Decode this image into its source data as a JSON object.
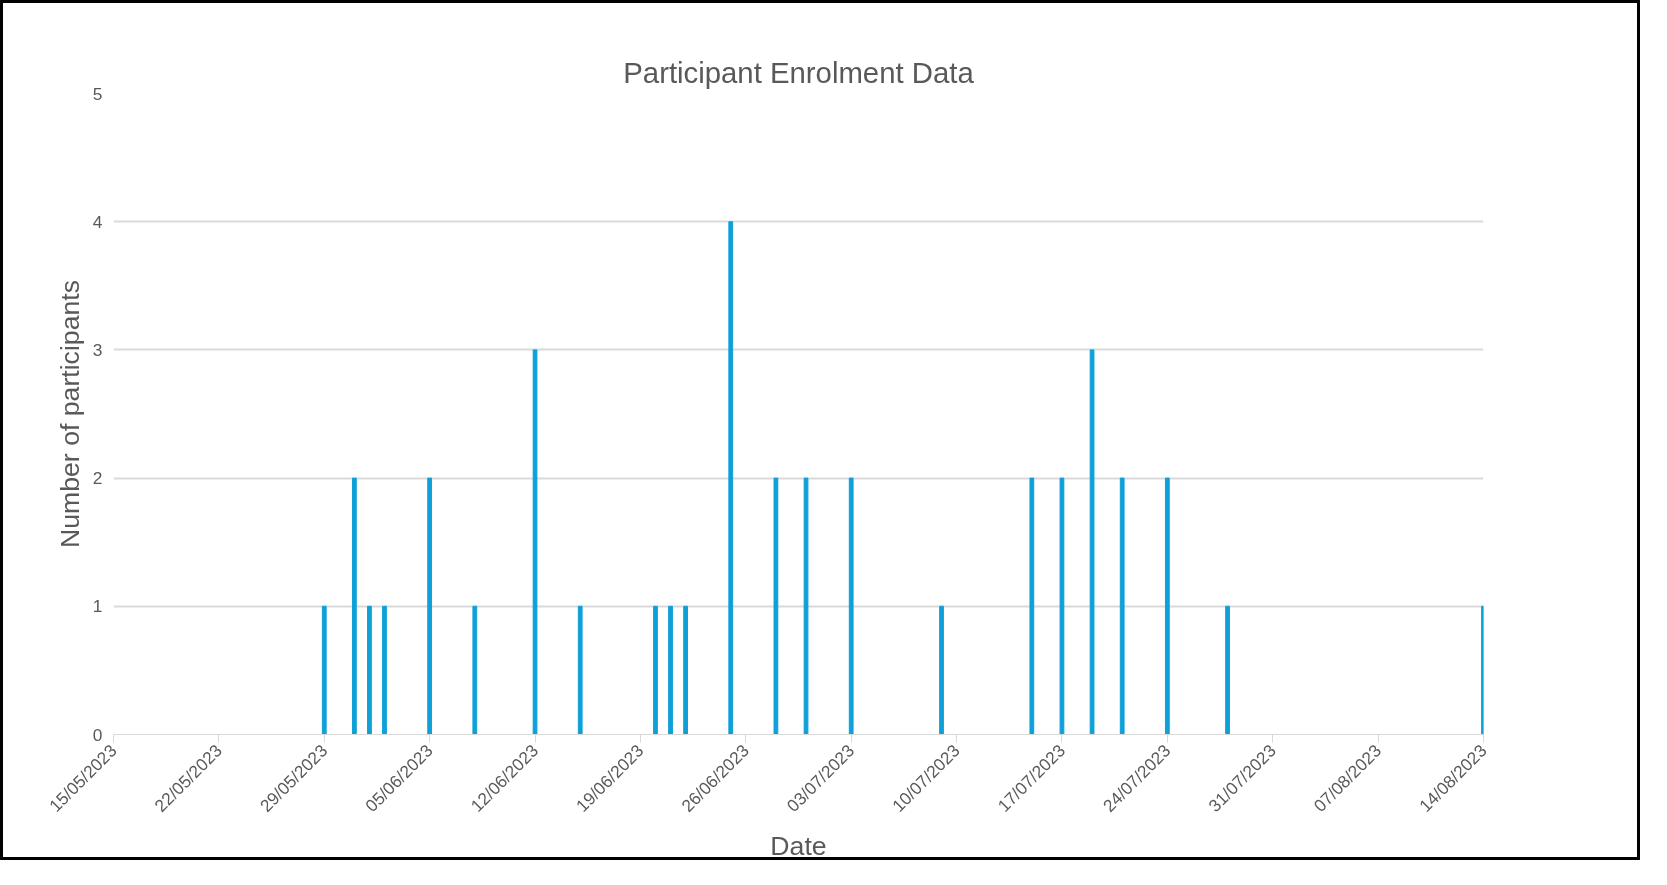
{
  "chart_data": {
    "type": "bar",
    "title": "Participant Enrolment Data",
    "xlabel": "Date",
    "ylabel": "Number of participants",
    "x": [
      "2023-05-29",
      "2023-05-31",
      "2023-06-01",
      "2023-06-02",
      "2023-06-05",
      "2023-06-08",
      "2023-06-12",
      "2023-06-15",
      "2023-06-20",
      "2023-06-21",
      "2023-06-22",
      "2023-06-25",
      "2023-06-28",
      "2023-06-30",
      "2023-07-03",
      "2023-07-09",
      "2023-07-15",
      "2023-07-17",
      "2023-07-19",
      "2023-07-21",
      "2023-07-24",
      "2023-07-28",
      "2023-08-14"
    ],
    "values": [
      1,
      2,
      1,
      1,
      2,
      1,
      3,
      1,
      1,
      1,
      1,
      4,
      2,
      2,
      2,
      1,
      2,
      2,
      3,
      2,
      2,
      1,
      1
    ],
    "color": "#0ea0d8",
    "xlim": [
      "2023-05-15",
      "2023-08-14"
    ],
    "xticks": [
      {
        "value": "2023-05-15",
        "label": "15/05/2023"
      },
      {
        "value": "2023-05-22",
        "label": "22/05/2023"
      },
      {
        "value": "2023-05-29",
        "label": "29/05/2023"
      },
      {
        "value": "2023-06-05",
        "label": "05/06/2023"
      },
      {
        "value": "2023-06-12",
        "label": "12/06/2023"
      },
      {
        "value": "2023-06-19",
        "label": "19/06/2023"
      },
      {
        "value": "2023-06-26",
        "label": "26/06/2023"
      },
      {
        "value": "2023-07-03",
        "label": "03/07/2023"
      },
      {
        "value": "2023-07-10",
        "label": "10/07/2023"
      },
      {
        "value": "2023-07-17",
        "label": "17/07/2023"
      },
      {
        "value": "2023-07-24",
        "label": "24/07/2023"
      },
      {
        "value": "2023-07-31",
        "label": "31/07/2023"
      },
      {
        "value": "2023-08-07",
        "label": "07/08/2023"
      },
      {
        "value": "2023-08-14",
        "label": "14/08/2023"
      }
    ],
    "ylim": [
      0,
      5
    ],
    "yticks": [
      0,
      1,
      2,
      3,
      4,
      5
    ],
    "grid": "y"
  }
}
